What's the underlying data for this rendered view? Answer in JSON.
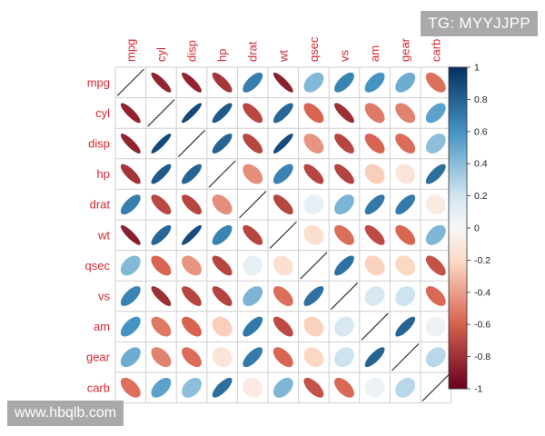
{
  "overlays": {
    "top_right_tag": "TG: MYYJJPP",
    "bottom_left_tag": "www.hbqlb.com"
  },
  "colors": {
    "label": "#d7282f",
    "grid": "#cfcfcf",
    "neg_strong": "#67001f",
    "neg_mid": "#d6604d",
    "neg_light": "#fddbc7",
    "neutral": "#f7f7f7",
    "pos_light": "#d1e5f0",
    "pos_mid": "#4393c3",
    "pos_strong": "#053061"
  },
  "chart_data": {
    "type": "heatmap",
    "style": "correlation-ellipse",
    "title": "",
    "variables": [
      "mpg",
      "cyl",
      "disp",
      "hp",
      "drat",
      "wt",
      "qsec",
      "vs",
      "am",
      "gear",
      "carb"
    ],
    "matrix": [
      [
        1.0,
        -0.85,
        -0.85,
        -0.78,
        0.68,
        -0.87,
        0.42,
        0.66,
        0.6,
        0.48,
        -0.55
      ],
      [
        -0.85,
        1.0,
        0.9,
        0.83,
        -0.7,
        0.78,
        -0.59,
        -0.81,
        -0.52,
        -0.49,
        0.53
      ],
      [
        -0.85,
        0.9,
        1.0,
        0.79,
        -0.71,
        0.89,
        -0.43,
        -0.71,
        -0.59,
        -0.56,
        0.39
      ],
      [
        -0.78,
        0.83,
        0.79,
        1.0,
        -0.45,
        0.66,
        -0.71,
        -0.72,
        -0.24,
        -0.13,
        0.75
      ],
      [
        0.68,
        -0.7,
        -0.71,
        -0.45,
        1.0,
        -0.71,
        0.09,
        0.44,
        0.71,
        0.7,
        -0.09
      ],
      [
        -0.87,
        0.78,
        0.89,
        0.66,
        -0.71,
        1.0,
        -0.17,
        -0.55,
        -0.69,
        -0.58,
        0.43
      ],
      [
        0.42,
        -0.59,
        -0.43,
        -0.71,
        0.09,
        -0.17,
        1.0,
        0.74,
        -0.23,
        -0.21,
        -0.66
      ],
      [
        0.66,
        -0.81,
        -0.71,
        -0.72,
        0.44,
        -0.55,
        0.74,
        1.0,
        0.17,
        0.21,
        -0.57
      ],
      [
        0.6,
        -0.52,
        -0.59,
        -0.24,
        0.71,
        -0.69,
        -0.23,
        0.17,
        1.0,
        0.79,
        0.06
      ],
      [
        0.48,
        -0.49,
        -0.56,
        -0.13,
        0.7,
        -0.58,
        -0.21,
        0.21,
        0.79,
        1.0,
        0.27
      ],
      [
        -0.55,
        0.53,
        0.39,
        0.75,
        -0.09,
        0.43,
        -0.66,
        -0.57,
        0.06,
        0.27,
        1.0
      ]
    ],
    "colorbar": {
      "range": [
        -1,
        1
      ],
      "ticks": [
        1,
        0.8,
        0.6,
        0.4,
        0.2,
        0,
        -0.2,
        -0.4,
        -0.6,
        -0.8,
        -1
      ],
      "tick_labels": [
        "1",
        "0.8",
        "0.6",
        "0.4",
        "0.2",
        "0",
        "-0.2",
        "-0.4",
        "-0.6",
        "-0.8",
        "-1"
      ],
      "position": "right"
    }
  }
}
